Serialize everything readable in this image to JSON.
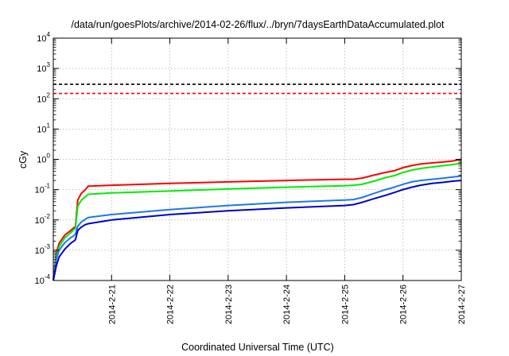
{
  "chart_data": {
    "type": "line",
    "title": "/data/run/goesPlots/archive/2014-02-26/flux/../bryn/7daysEarthDataAccumulated.plot",
    "xlabel": "Coordinated Universal Time (UTC)",
    "ylabel": "cGy",
    "yscale": "log",
    "ylim": [
      0.0001,
      10000
    ],
    "xlim": [
      0,
      7
    ],
    "y_ticks": [
      {
        "base": "10",
        "exp": "-4"
      },
      {
        "base": "10",
        "exp": "-3"
      },
      {
        "base": "10",
        "exp": "-2"
      },
      {
        "base": "10",
        "exp": "-1"
      },
      {
        "base": "10",
        "exp": "0"
      },
      {
        "base": "10",
        "exp": "1"
      },
      {
        "base": "10",
        "exp": "2"
      },
      {
        "base": "10",
        "exp": "3"
      },
      {
        "base": "10",
        "exp": "4"
      }
    ],
    "x_tick_labels": [
      "2014-2-21",
      "2014-2-22",
      "2014-2-23",
      "2014-2-24",
      "2014-2-25",
      "2014-2-26",
      "2014-2-27"
    ],
    "x_tick_values": [
      1,
      2,
      3,
      4,
      5,
      6,
      7
    ],
    "grid": true,
    "series": [
      {
        "color": "#ff0000",
        "x": [
          0,
          0.05,
          0.1,
          0.2,
          0.3,
          0.35,
          0.38,
          0.42,
          0.48,
          0.55,
          0.6,
          1,
          2,
          3,
          4,
          5,
          5.15,
          5.3,
          5.5,
          5.7,
          5.85,
          6,
          6.15,
          6.3,
          6.5,
          6.7,
          6.85,
          7
        ],
        "y": [
          0.0001,
          0.0008,
          0.0017,
          0.0032,
          0.0045,
          0.0055,
          0.006,
          0.045,
          0.075,
          0.1,
          0.13,
          0.14,
          0.16,
          0.18,
          0.2,
          0.22,
          0.22,
          0.24,
          0.3,
          0.37,
          0.42,
          0.53,
          0.62,
          0.7,
          0.76,
          0.82,
          0.88,
          1.0
        ]
      },
      {
        "color": "#00ee00",
        "x": [
          0,
          0.05,
          0.1,
          0.2,
          0.3,
          0.35,
          0.38,
          0.42,
          0.48,
          0.55,
          0.6,
          1,
          2,
          3,
          4,
          5,
          5.15,
          5.3,
          5.5,
          5.7,
          5.85,
          6,
          6.15,
          6.3,
          6.5,
          6.7,
          6.85,
          7
        ],
        "y": [
          0.0001,
          0.0006,
          0.0013,
          0.0026,
          0.0038,
          0.0048,
          0.0052,
          0.028,
          0.045,
          0.058,
          0.07,
          0.078,
          0.09,
          0.105,
          0.12,
          0.135,
          0.14,
          0.15,
          0.19,
          0.25,
          0.29,
          0.37,
          0.44,
          0.5,
          0.56,
          0.62,
          0.67,
          0.75
        ]
      },
      {
        "color": "#1e78e6",
        "x": [
          0,
          0.05,
          0.1,
          0.2,
          0.3,
          0.35,
          0.38,
          0.42,
          0.48,
          0.55,
          0.6,
          1,
          2,
          3,
          4,
          5,
          5.15,
          5.3,
          5.5,
          5.7,
          5.85,
          6,
          6.15,
          6.3,
          6.5,
          6.7,
          6.85,
          7
        ],
        "y": [
          0.00012,
          0.0005,
          0.001,
          0.0018,
          0.0026,
          0.003,
          0.0034,
          0.0062,
          0.0085,
          0.0105,
          0.012,
          0.015,
          0.022,
          0.03,
          0.038,
          0.045,
          0.047,
          0.055,
          0.075,
          0.1,
          0.12,
          0.15,
          0.18,
          0.2,
          0.22,
          0.24,
          0.26,
          0.28
        ]
      },
      {
        "color": "#0000cc",
        "x": [
          0,
          0.05,
          0.1,
          0.2,
          0.3,
          0.35,
          0.38,
          0.42,
          0.48,
          0.55,
          0.6,
          1,
          2,
          3,
          4,
          5,
          5.15,
          5.3,
          5.5,
          5.7,
          5.85,
          6,
          6.15,
          6.3,
          6.5,
          6.7,
          6.85,
          7
        ],
        "y": [
          0.0001,
          0.0003,
          0.0006,
          0.0011,
          0.0017,
          0.002,
          0.0022,
          0.0045,
          0.0058,
          0.007,
          0.0075,
          0.01,
          0.015,
          0.02,
          0.025,
          0.03,
          0.032,
          0.038,
          0.05,
          0.065,
          0.08,
          0.1,
          0.12,
          0.14,
          0.16,
          0.175,
          0.19,
          0.2
        ]
      }
    ],
    "thresholds": [
      {
        "value": 300,
        "color": "#000000",
        "style": "dashed"
      },
      {
        "value": 150,
        "color": "#ff0000",
        "style": "dashed"
      }
    ]
  }
}
